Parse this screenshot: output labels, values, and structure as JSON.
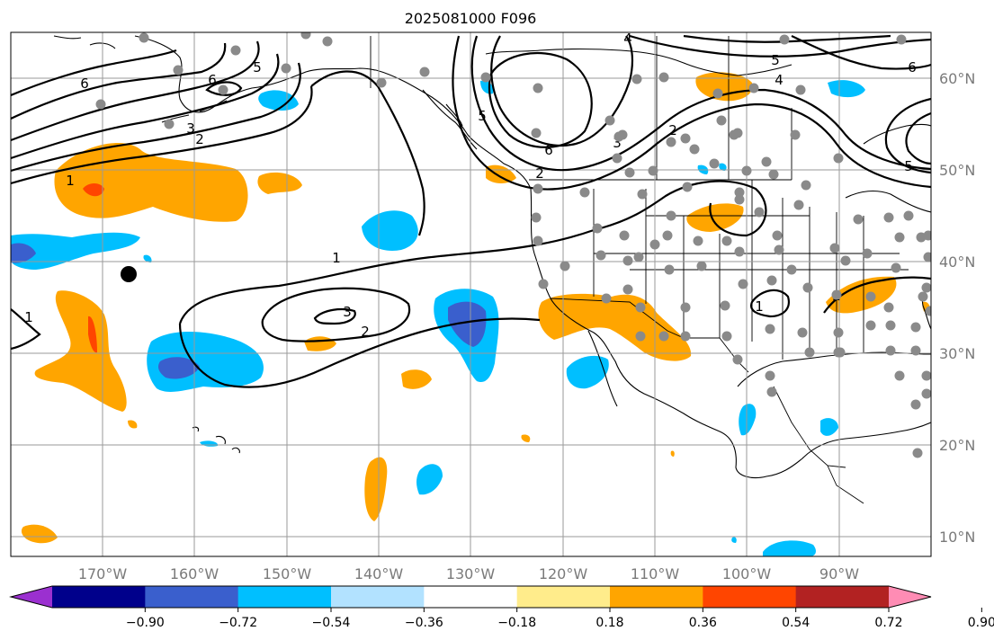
{
  "title": "2025081000 F096",
  "lon_labels": [
    "170°W",
    "160°W",
    "150°W",
    "140°W",
    "130°W",
    "120°W",
    "110°W",
    "100°W",
    "90°W"
  ],
  "lat_labels": [
    "60°N",
    "50°N",
    "40°N",
    "30°N",
    "20°N",
    "10°N"
  ],
  "colorbar": {
    "tick_labels": [
      "−0.90",
      "−0.72",
      "−0.54",
      "−0.36",
      "−0.18",
      "0.18",
      "0.36",
      "0.54",
      "0.72",
      "0.90"
    ],
    "colors": [
      "#9b30d0",
      "#00008b",
      "#3a5fcd",
      "#00bfff",
      "#b2e2ff",
      "#ffffff",
      "#ffec8b",
      "#ffa500",
      "#ff4500",
      "#b22222",
      "#ff8cb4"
    ]
  },
  "contour_labels": [
    "6",
    "5",
    "3",
    "2",
    "1",
    "1",
    "1",
    "2",
    "3",
    "4",
    "6",
    "5",
    "3",
    "2",
    "2",
    "4",
    "5",
    "6",
    "6",
    "5",
    "1",
    "2"
  ],
  "colors": {
    "negative_strong": "#3a5fcd",
    "negative": "#00bfff",
    "negative_weak": "#b2e2ff",
    "positive_weak": "#ffec8b",
    "positive": "#ffa500",
    "positive_strong": "#ff4500",
    "station": "#8a8a8a"
  }
}
